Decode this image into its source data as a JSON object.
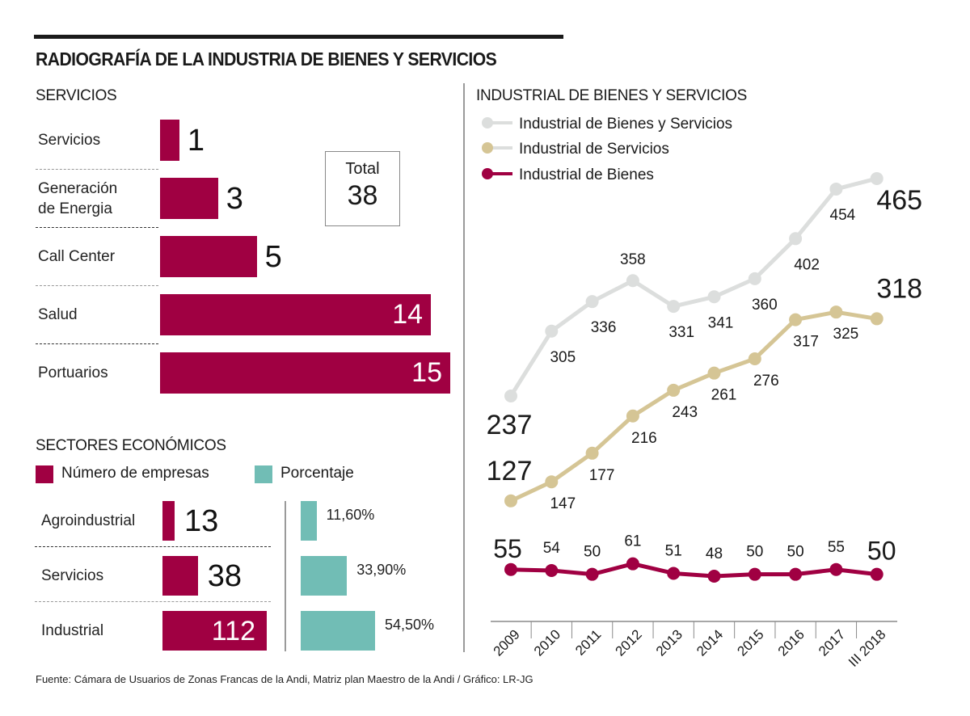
{
  "title": "RADIOGRAFÍA DE LA INDUSTRIA DE BIENES Y SERVICIOS",
  "source": "Fuente: Cámara de Usuarios de Zonas Francas de la Andi, Matriz plan Maestro de la Andi / Gráfico: LR-JG",
  "colors": {
    "pink": "#a00042",
    "teal": "#71bdb5",
    "gray_line": "#dcdedd",
    "tan_line": "#d5c595"
  },
  "chart_data": [
    {
      "type": "bar",
      "orientation": "horizontal",
      "title": "SERVICIOS",
      "categories": [
        "Servicios",
        "Generación de Energia",
        "Call Center",
        "Salud",
        "Portuarios"
      ],
      "category_lines": [
        [
          "Servicios"
        ],
        [
          "Generación",
          "de Energia"
        ],
        [
          "Call Center"
        ],
        [
          "Salud"
        ],
        [
          "Portuarios"
        ]
      ],
      "values": [
        1,
        3,
        5,
        14,
        15
      ],
      "value_labels": [
        "1",
        "3",
        "5",
        "14",
        "15"
      ],
      "xlim": [
        0,
        15
      ],
      "total_label": "Total",
      "total_value": "38"
    },
    {
      "type": "bar",
      "orientation": "horizontal",
      "title": "SECTORES ECONÓMICOS",
      "legend": [
        "Número de empresas",
        "Porcentaje"
      ],
      "categories": [
        "Agroindustrial",
        "Servicios",
        "Industrial"
      ],
      "series": [
        {
          "name": "Número de empresas",
          "values": [
            13,
            38,
            112
          ],
          "labels": [
            "13",
            "38",
            "112"
          ],
          "xlim": [
            0,
            112
          ]
        },
        {
          "name": "Porcentaje",
          "values": [
            11.6,
            33.9,
            54.5
          ],
          "labels": [
            "11,60%",
            "33,90%",
            "54,50%"
          ],
          "xlim": [
            0,
            54.5
          ]
        }
      ]
    },
    {
      "type": "line",
      "title": "INDUSTRIAL DE BIENES Y SERVICIOS",
      "categories": [
        "2009",
        "2010",
        "2011",
        "2012",
        "2013",
        "2014",
        "2015",
        "2016",
        "2017",
        "III 2018"
      ],
      "legend": [
        "Industrial de Bienes y Servicios",
        "Industrial de Servicios",
        "Industrial de Bienes"
      ],
      "legend_placement": "top-left",
      "series": [
        {
          "name": "Industrial de Bienes y Servicios",
          "values": [
            237,
            305,
            336,
            358,
            331,
            341,
            360,
            402,
            454,
            465
          ]
        },
        {
          "name": "Industrial de Servicios",
          "values": [
            127,
            147,
            177,
            216,
            243,
            261,
            276,
            317,
            325,
            318
          ]
        },
        {
          "name": "Industrial de Bienes",
          "values": [
            55,
            54,
            50,
            61,
            51,
            48,
            50,
            50,
            55,
            50
          ]
        }
      ],
      "ylim": [
        40,
        480
      ],
      "grid": false
    }
  ]
}
